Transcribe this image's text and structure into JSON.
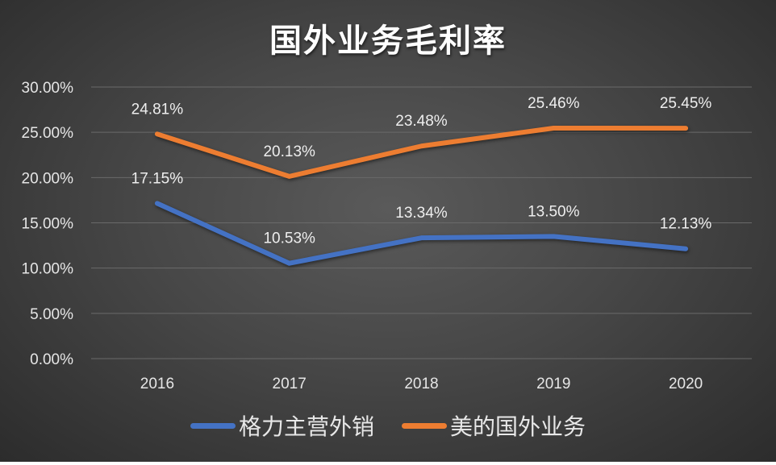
{
  "chart_data": {
    "type": "line",
    "title": "国外业务毛利率",
    "categories": [
      "2016",
      "2017",
      "2018",
      "2019",
      "2020"
    ],
    "ylim": [
      0,
      30
    ],
    "yticks": [
      "0.00%",
      "5.00%",
      "10.00%",
      "15.00%",
      "20.00%",
      "25.00%",
      "30.00%"
    ],
    "grid": true,
    "legend_position": "bottom",
    "series": [
      {
        "name": "格力主营外销",
        "color": "#4472c4",
        "values": [
          17.15,
          10.53,
          13.34,
          13.5,
          12.13
        ],
        "labels": [
          "17.15%",
          "10.53%",
          "13.34%",
          "13.50%",
          "12.13%"
        ]
      },
      {
        "name": "美的国外业务",
        "color": "#ed7d31",
        "values": [
          24.81,
          20.13,
          23.48,
          25.46,
          25.45
        ],
        "labels": [
          "24.81%",
          "20.13%",
          "23.48%",
          "25.46%",
          "25.45%"
        ]
      }
    ]
  }
}
